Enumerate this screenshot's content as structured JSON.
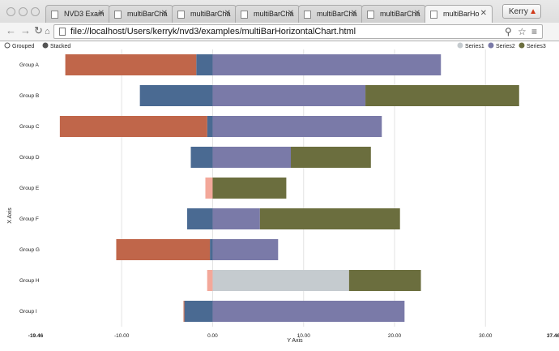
{
  "browser": {
    "tabs": [
      {
        "label": "NVD3 Exam"
      },
      {
        "label": "multiBarCha"
      },
      {
        "label": "multiBarCha"
      },
      {
        "label": "multiBarCha"
      },
      {
        "label": "multiBarCha"
      },
      {
        "label": "multiBarCha"
      },
      {
        "label": "multiBarHo",
        "active": true
      }
    ],
    "profile_label": "Kerry",
    "url": "file://localhost/Users/kerryk/nvd3/examples/multiBarHorizontalChart.html",
    "icons": [
      "back-icon",
      "forward-icon",
      "reload-icon",
      "home-icon",
      "page-icon",
      "search-icon",
      "star-icon",
      "menu-icon",
      "warning-icon"
    ]
  },
  "controls": {
    "grouped_label": "Grouped",
    "stacked_label": "Stacked",
    "selected": "Stacked"
  },
  "legend": [
    {
      "name": "Series1",
      "color": "#c5cbcf"
    },
    {
      "name": "Series2",
      "color": "#7a7aa8"
    },
    {
      "name": "Series3",
      "color": "#6b6e3e"
    }
  ],
  "chart_data": {
    "type": "bar",
    "orientation": "horizontal",
    "stacked": true,
    "xlabel": "X Axis",
    "ylabel": "Y Axis",
    "categories": [
      "Group A",
      "Group B",
      "Group C",
      "Group D",
      "Group E",
      "Group F",
      "Group G",
      "Group H",
      "Group I"
    ],
    "ylim": [
      -19.46,
      37.46
    ],
    "tick_labels": [
      "-19.46",
      "-10.00",
      "0.00",
      "10.00",
      "20.00",
      "30.00",
      "37.46"
    ],
    "tick_values": [
      -19.46,
      -10,
      0,
      10,
      20,
      30,
      37.46
    ],
    "grid": true,
    "legend_position": "top-right",
    "series": [
      {
        "name": "Series1",
        "color_pos": "#c5cbcf",
        "color_neg": "#4a6a92",
        "values": [
          -1.8,
          -8.0,
          -0.6,
          -2.4,
          0.0,
          -2.8,
          -0.3,
          15.0,
          -3.1
        ]
      },
      {
        "name": "Series2",
        "color_pos": "#7a7aa8",
        "color_neg": "#f3a89a",
        "values": [
          25.1,
          16.8,
          18.6,
          8.6,
          -0.8,
          5.2,
          7.2,
          -0.6,
          21.1
        ]
      },
      {
        "name": "Series3",
        "color_pos": "#6b6e3e",
        "color_neg": "#c0664a",
        "values": [
          -14.4,
          16.9,
          -16.2,
          8.8,
          8.1,
          15.4,
          -10.3,
          7.9,
          -0.1
        ]
      }
    ]
  }
}
